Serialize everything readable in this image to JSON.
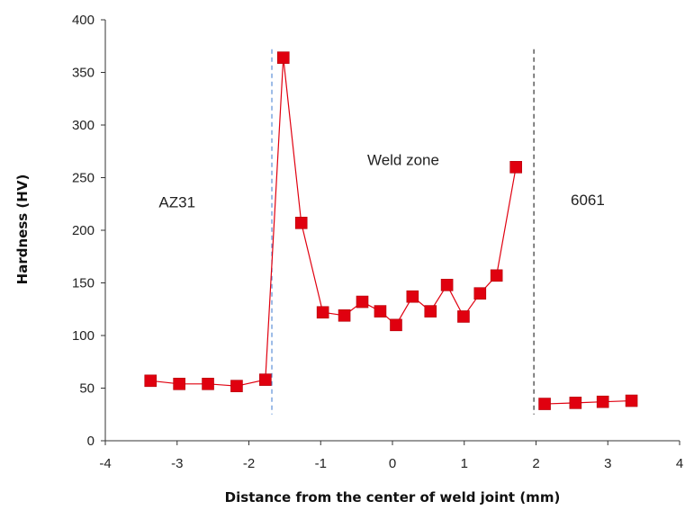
{
  "chart_data": {
    "type": "scatter",
    "xlabel": "Distance from the center of weld joint (mm)",
    "ylabel": "Hardness (HV)",
    "xlim": [
      -4,
      4
    ],
    "ylim": [
      0,
      400
    ],
    "xticks": [
      -4,
      -3,
      -2,
      -1,
      0,
      1,
      2,
      3,
      4
    ],
    "yticks": [
      0,
      50,
      100,
      150,
      200,
      250,
      300,
      350,
      400
    ],
    "xtick_labels": [
      "-4",
      "-3",
      "-2",
      "-1",
      "0",
      "1",
      "2",
      "3",
      "4"
    ],
    "ytick_labels": [
      "0",
      "50",
      "100",
      "150",
      "200",
      "250",
      "300",
      "350",
      "400"
    ],
    "grid": false,
    "series": [
      {
        "color": "#e0000f",
        "marker": "square",
        "x": [
          -3.37,
          -2.97,
          -2.57,
          -2.17,
          -1.77,
          -1.52,
          -1.27,
          -0.97,
          -0.67,
          -0.42,
          -0.17,
          0.05,
          0.28,
          0.53,
          0.76,
          0.99,
          1.22,
          1.45,
          1.72,
          2.12,
          2.55,
          2.93,
          3.33
        ],
        "y": [
          57,
          54,
          54,
          52,
          58,
          364,
          207,
          122,
          119,
          132,
          123,
          110,
          137,
          123,
          148,
          118,
          140,
          157,
          260,
          35,
          36,
          37,
          38
        ],
        "segments": [
          [
            0,
            19
          ],
          [
            19,
            23
          ]
        ]
      }
    ],
    "vlines": [
      {
        "x": -1.68,
        "style": "dashed",
        "color": "#5b8ed6"
      },
      {
        "x": 1.97,
        "style": "dashed",
        "color": "#333333"
      }
    ],
    "annotations": [
      {
        "text": "AZ31",
        "x": -3.0,
        "y": 222
      },
      {
        "text": "Weld zone",
        "x": 0.15,
        "y": 262
      },
      {
        "text": "6061",
        "x": 2.72,
        "y": 224
      }
    ]
  }
}
